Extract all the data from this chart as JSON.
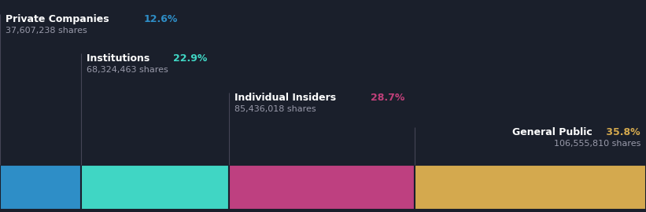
{
  "categories": [
    "Private Companies",
    "Institutions",
    "Individual Insiders",
    "General Public"
  ],
  "percentages": [
    12.6,
    22.9,
    28.7,
    35.8
  ],
  "shares": [
    "37,607,238 shares",
    "68,324,463 shares",
    "85,436,018 shares",
    "106,555,810 shares"
  ],
  "colors": [
    "#2e8ec7",
    "#40d6c4",
    "#be4080",
    "#d4a94e"
  ],
  "pct_colors": [
    "#2e8ec7",
    "#40d6c4",
    "#c0407a",
    "#d4a94e"
  ],
  "background_color": "#1a1f2b",
  "label_color": "#ffffff",
  "shares_color": "#999aaa",
  "label_fontsize": 9.0,
  "shares_fontsize": 8.0,
  "pct_fontsize": 9.0,
  "figsize": [
    8.21,
    2.7
  ],
  "dpi": 100
}
